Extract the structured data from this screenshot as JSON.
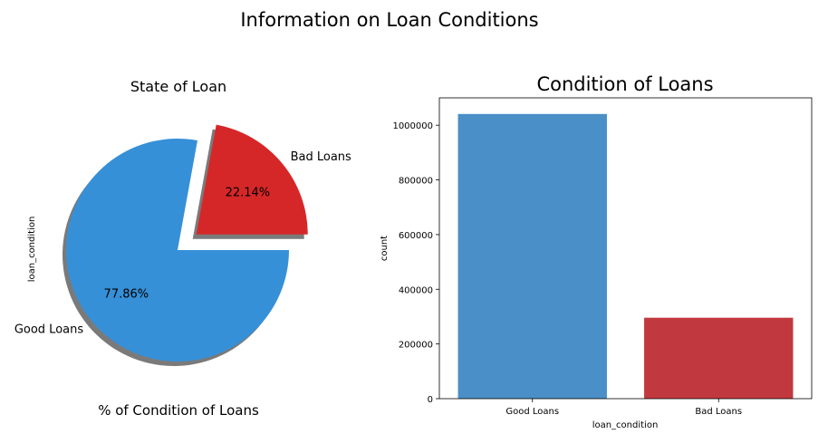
{
  "figure_title": "Information on Loan Conditions",
  "chart_data": [
    {
      "type": "pie",
      "title": "State of Loan",
      "xlabel": "% of Condition of Loans",
      "ylabel": "loan_condition",
      "labels": [
        "Good Loans",
        "Bad Loans"
      ],
      "values": [
        77.86,
        22.14
      ],
      "value_labels": [
        "77.86%",
        "22.14%"
      ],
      "colors": [
        "#3690d8",
        "#d62728"
      ],
      "shadow": true
    },
    {
      "type": "bar",
      "title": "Condition of Loans",
      "categories": [
        "Good Loans",
        "Bad Loans"
      ],
      "values": [
        1041000,
        296000
      ],
      "colors": [
        "#4a8fc7",
        "#c1393e"
      ],
      "xlabel": "loan_condition",
      "ylabel": "count",
      "ylim": [
        0,
        1100000
      ],
      "yticks": [
        0,
        200000,
        400000,
        600000,
        800000,
        1000000
      ],
      "ytick_labels": [
        "0",
        "200000",
        "400000",
        "600000",
        "800000",
        "1000000"
      ],
      "grid": false
    }
  ]
}
